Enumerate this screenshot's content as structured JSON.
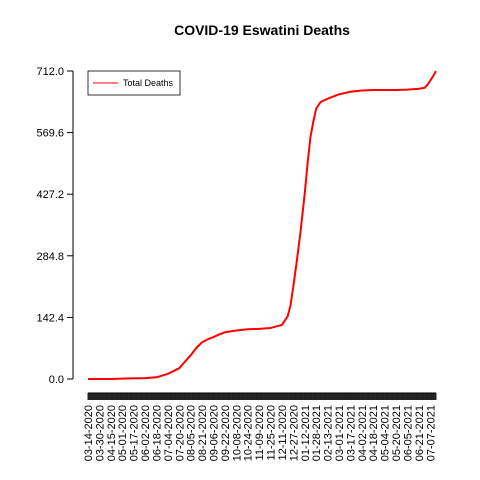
{
  "chart_data": {
    "type": "line",
    "title": "COVID-19 Eswatini Deaths",
    "xlabel": "",
    "ylabel": "",
    "ylim": [
      0,
      712
    ],
    "yticks": [
      "0.0",
      "142.4",
      "284.8",
      "427.2",
      "569.6",
      "712.0"
    ],
    "ytick_values": [
      0,
      142.4,
      284.8,
      427.2,
      569.6,
      712.0
    ],
    "xticks": [
      "03-14-2020",
      "03-30-2020",
      "04-15-2020",
      "05-01-2020",
      "05-17-2020",
      "06-02-2020",
      "06-18-2020",
      "07-04-2020",
      "07-20-2020",
      "08-05-2020",
      "08-21-2020",
      "09-06-2020",
      "09-22-2020",
      "10-08-2020",
      "10-24-2020",
      "11-09-2020",
      "11-25-2020",
      "12-11-2020",
      "12-27-2020",
      "01-12-2021",
      "01-28-2021",
      "02-13-2021",
      "03-01-2021",
      "03-17-2021",
      "04-02-2021",
      "04-18-2021",
      "05-04-2021",
      "05-20-2021",
      "06-05-2021",
      "06-21-2021",
      "07-07-2021"
    ],
    "x_start": "03-14-2020",
    "x_end": "07-15-2021",
    "grid": false,
    "legend_position": "top-left",
    "series": [
      {
        "name": "Total Deaths",
        "color": "#ff0000",
        "points": [
          [
            "03-14-2020",
            0
          ],
          [
            "04-15-2020",
            0
          ],
          [
            "05-01-2020",
            1
          ],
          [
            "06-02-2020",
            2
          ],
          [
            "06-18-2020",
            4
          ],
          [
            "07-04-2020",
            12
          ],
          [
            "07-20-2020",
            25
          ],
          [
            "07-28-2020",
            40
          ],
          [
            "08-05-2020",
            55
          ],
          [
            "08-13-2020",
            72
          ],
          [
            "08-21-2020",
            85
          ],
          [
            "08-29-2020",
            92
          ],
          [
            "09-06-2020",
            97
          ],
          [
            "09-14-2020",
            103
          ],
          [
            "09-22-2020",
            108
          ],
          [
            "10-08-2020",
            112
          ],
          [
            "10-24-2020",
            115
          ],
          [
            "11-09-2020",
            116
          ],
          [
            "11-25-2020",
            118
          ],
          [
            "12-11-2020",
            125
          ],
          [
            "12-19-2020",
            145
          ],
          [
            "12-23-2020",
            170
          ],
          [
            "12-27-2020",
            215
          ],
          [
            "01-01-2021",
            275
          ],
          [
            "01-06-2021",
            340
          ],
          [
            "01-12-2021",
            430
          ],
          [
            "01-16-2021",
            500
          ],
          [
            "01-20-2021",
            560
          ],
          [
            "01-24-2021",
            595
          ],
          [
            "01-28-2021",
            625
          ],
          [
            "02-03-2021",
            640
          ],
          [
            "02-13-2021",
            648
          ],
          [
            "03-01-2021",
            658
          ],
          [
            "03-17-2021",
            664
          ],
          [
            "04-02-2021",
            667
          ],
          [
            "04-18-2021",
            668
          ],
          [
            "05-04-2021",
            668
          ],
          [
            "05-20-2021",
            668
          ],
          [
            "06-05-2021",
            669
          ],
          [
            "06-21-2021",
            671
          ],
          [
            "06-29-2021",
            673
          ],
          [
            "07-03-2021",
            680
          ],
          [
            "07-07-2021",
            690
          ],
          [
            "07-11-2021",
            700
          ],
          [
            "07-15-2021",
            712
          ]
        ]
      }
    ]
  }
}
